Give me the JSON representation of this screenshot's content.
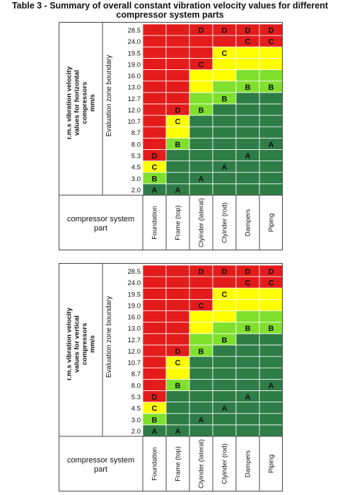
{
  "title": "Table 3 - Summary of overall constant vibration velocity values for different compressor system parts",
  "colors": {
    "A": "#2e7d46",
    "B": "#7fe02d",
    "C": "#ffff00",
    "D": "#e41b1b",
    "text": "#111111",
    "grid": "#ffffff",
    "border": "#444444"
  },
  "boundaries": [
    "28.5",
    "24.0",
    "19.5",
    "19.0",
    "16.0",
    "13.0",
    "12.7",
    "12.0",
    "10.7",
    "8.7",
    "8.0",
    "5.3",
    "4.5",
    "3.0",
    "2.0"
  ],
  "parts": [
    "Foundation",
    "Frame (top)",
    "Clyinder (lateral)",
    "Clyinder (rod)",
    "Dampers",
    "Piping"
  ],
  "zone_axis_label": "Evaluation zone boundary",
  "part_label": "compressor system part",
  "tables": [
    {
      "velocity_label": [
        "r.m.s vibration velocity",
        "values for horizontal",
        "compressors",
        "mm/s"
      ],
      "columns": [
        {
          "zones": [
            [
              "A",
              1
            ],
            [
              "B",
              1
            ],
            [
              "C",
              1
            ],
            [
              "D",
              12
            ]
          ]
        },
        {
          "zones": [
            [
              "A",
              4
            ],
            [
              "B",
              1
            ],
            [
              "C",
              2
            ],
            [
              "D",
              8
            ]
          ]
        },
        {
          "zones": [
            [
              "A",
              7
            ],
            [
              "B",
              2
            ],
            [
              "C",
              2
            ],
            [
              "D",
              4
            ]
          ]
        },
        {
          "zones": [
            [
              "A",
              8
            ],
            [
              "B",
              2
            ],
            [
              "C",
              3
            ],
            [
              "D",
              2
            ]
          ]
        },
        {
          "zones": [
            [
              "A",
              9
            ],
            [
              "B",
              2
            ],
            [
              "C",
              2
            ],
            [
              "D",
              2
            ]
          ]
        },
        {
          "zones": [
            [
              "A",
              9
            ],
            [
              "B",
              2
            ],
            [
              "C",
              2
            ],
            [
              "D",
              2
            ]
          ]
        }
      ],
      "labels": [
        {
          "col": 0,
          "row": 14,
          "text": "A"
        },
        {
          "col": 0,
          "row": 13,
          "text": "B"
        },
        {
          "col": 0,
          "row": 12,
          "text": "C"
        },
        {
          "col": 0,
          "row": 11,
          "text": "D"
        },
        {
          "col": 1,
          "row": 14,
          "text": "A"
        },
        {
          "col": 1,
          "row": 10,
          "text": "B"
        },
        {
          "col": 1,
          "row": 8,
          "text": "C"
        },
        {
          "col": 1,
          "row": 7,
          "text": "D"
        },
        {
          "col": 2,
          "row": 13,
          "text": "A"
        },
        {
          "col": 2,
          "row": 7,
          "text": "B"
        },
        {
          "col": 2,
          "row": 3,
          "text": "C"
        },
        {
          "col": 2,
          "row": 0,
          "text": "D"
        },
        {
          "col": 3,
          "row": 12,
          "text": "A"
        },
        {
          "col": 3,
          "row": 6,
          "text": "B"
        },
        {
          "col": 3,
          "row": 2,
          "text": "C"
        },
        {
          "col": 3,
          "row": 0,
          "text": "D"
        },
        {
          "col": 4,
          "row": 11,
          "text": "A"
        },
        {
          "col": 4,
          "row": 5,
          "text": "B"
        },
        {
          "col": 4,
          "row": 1,
          "text": "C"
        },
        {
          "col": 4,
          "row": 0,
          "text": "D"
        },
        {
          "col": 5,
          "row": 10,
          "text": "A"
        },
        {
          "col": 5,
          "row": 5,
          "text": "B"
        },
        {
          "col": 5,
          "row": 1,
          "text": "C"
        },
        {
          "col": 5,
          "row": 0,
          "text": "D"
        }
      ]
    },
    {
      "velocity_label": [
        "r.m.s vibration velocity",
        "values for vertical",
        "compressors",
        "mm/s"
      ],
      "columns": [
        {
          "zones": [
            [
              "A",
              1
            ],
            [
              "B",
              1
            ],
            [
              "C",
              1
            ],
            [
              "D",
              12
            ]
          ]
        },
        {
          "zones": [
            [
              "A",
              4
            ],
            [
              "B",
              1
            ],
            [
              "C",
              2
            ],
            [
              "D",
              8
            ]
          ]
        },
        {
          "zones": [
            [
              "A",
              7
            ],
            [
              "B",
              2
            ],
            [
              "C",
              2
            ],
            [
              "D",
              4
            ]
          ]
        },
        {
          "zones": [
            [
              "A",
              8
            ],
            [
              "B",
              2
            ],
            [
              "C",
              3
            ],
            [
              "D",
              2
            ]
          ]
        },
        {
          "zones": [
            [
              "A",
              9
            ],
            [
              "B",
              2
            ],
            [
              "C",
              2
            ],
            [
              "D",
              2
            ]
          ]
        },
        {
          "zones": [
            [
              "A",
              9
            ],
            [
              "B",
              2
            ],
            [
              "C",
              2
            ],
            [
              "D",
              2
            ]
          ]
        }
      ],
      "labels": [
        {
          "col": 0,
          "row": 14,
          "text": "A"
        },
        {
          "col": 0,
          "row": 13,
          "text": "B"
        },
        {
          "col": 0,
          "row": 12,
          "text": "C"
        },
        {
          "col": 0,
          "row": 11,
          "text": "D"
        },
        {
          "col": 1,
          "row": 14,
          "text": "A"
        },
        {
          "col": 1,
          "row": 10,
          "text": "B"
        },
        {
          "col": 1,
          "row": 8,
          "text": "C"
        },
        {
          "col": 1,
          "row": 7,
          "text": "D"
        },
        {
          "col": 2,
          "row": 13,
          "text": "A"
        },
        {
          "col": 2,
          "row": 7,
          "text": "B"
        },
        {
          "col": 2,
          "row": 3,
          "text": "C"
        },
        {
          "col": 2,
          "row": 0,
          "text": "D"
        },
        {
          "col": 3,
          "row": 12,
          "text": "A"
        },
        {
          "col": 3,
          "row": 6,
          "text": "B"
        },
        {
          "col": 3,
          "row": 2,
          "text": "C"
        },
        {
          "col": 3,
          "row": 0,
          "text": "D"
        },
        {
          "col": 4,
          "row": 11,
          "text": "A"
        },
        {
          "col": 4,
          "row": 5,
          "text": "B"
        },
        {
          "col": 4,
          "row": 1,
          "text": "C"
        },
        {
          "col": 4,
          "row": 0,
          "text": "D"
        },
        {
          "col": 5,
          "row": 10,
          "text": "A"
        },
        {
          "col": 5,
          "row": 5,
          "text": "B"
        },
        {
          "col": 5,
          "row": 1,
          "text": "C"
        },
        {
          "col": 5,
          "row": 0,
          "text": "D"
        }
      ]
    }
  ]
}
